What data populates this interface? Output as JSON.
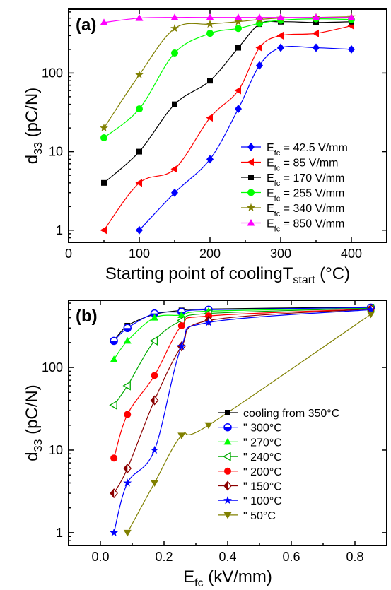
{
  "chart_data": [
    {
      "type": "line",
      "panel_label": "(a)",
      "xlabel_main": "Starting point of coolingT",
      "xlabel_sub": "start",
      "xlabel_tail": " (°C)",
      "ylabel_main": "d",
      "ylabel_sub": "33",
      "ylabel_tail": " (pC/N)",
      "xlim": [
        0,
        450
      ],
      "ylim": [
        0.7,
        650
      ],
      "yscale": "log",
      "xticks": [
        0,
        100,
        200,
        300,
        400
      ],
      "xtick_labels": [
        "0",
        "100",
        "200",
        "300",
        "400"
      ],
      "yticks": [
        1,
        10,
        100
      ],
      "ytick_labels": [
        "1",
        "10",
        "100"
      ],
      "legend_placement": "center-right",
      "series": [
        {
          "name_main": "E",
          "name_sub": "fc",
          "name_tail": " = 42.5 V/mm",
          "color": "#0000ff",
          "marker": "diamond",
          "x": [
            100,
            150,
            200,
            240,
            270,
            300,
            350,
            400
          ],
          "y": [
            1,
            3,
            8,
            35,
            125,
            210,
            210,
            200
          ]
        },
        {
          "name_main": "E",
          "name_sub": "fc",
          "name_tail": " = 85 V/mm",
          "color": "#ff0000",
          "marker": "triangle-left",
          "x": [
            50,
            100,
            150,
            200,
            240,
            270,
            300,
            350,
            400
          ],
          "y": [
            1,
            4,
            6,
            27,
            60,
            210,
            300,
            320,
            400
          ]
        },
        {
          "name_main": "E",
          "name_sub": "fc",
          "name_tail": " = 170 V/mm",
          "color": "#000000",
          "marker": "square",
          "x": [
            50,
            100,
            150,
            200,
            240,
            270,
            300,
            350,
            400
          ],
          "y": [
            4,
            10,
            40,
            80,
            210,
            420,
            450,
            440,
            450
          ]
        },
        {
          "name_main": "E",
          "name_sub": "fc",
          "name_tail": " = 255 V/mm",
          "color": "#00ff00",
          "marker": "circle",
          "x": [
            50,
            100,
            150,
            200,
            240,
            270,
            300,
            350,
            400
          ],
          "y": [
            15,
            35,
            180,
            320,
            370,
            430,
            470,
            490,
            480
          ]
        },
        {
          "name_main": "E",
          "name_sub": "fc",
          "name_tail": " = 340 V/mm",
          "color": "#808000",
          "marker": "star",
          "x": [
            50,
            100,
            150,
            200,
            240,
            270,
            300,
            350,
            400
          ],
          "y": [
            20,
            95,
            370,
            420,
            450,
            480,
            500,
            510,
            520
          ]
        },
        {
          "name_main": "E",
          "name_sub": "fc",
          "name_tail": " = 850 V/mm",
          "color": "#ff00ff",
          "marker": "triangle-up",
          "x": [
            50,
            100,
            150,
            200,
            240,
            270,
            300,
            350,
            400
          ],
          "y": [
            440,
            500,
            510,
            510,
            510,
            510,
            510,
            510,
            510
          ]
        }
      ]
    },
    {
      "type": "line",
      "panel_label": "(b)",
      "xlabel_main": "E",
      "xlabel_sub": "fc",
      "xlabel_tail": " (kV/mm)",
      "ylabel_main": "d",
      "ylabel_sub": "33",
      "ylabel_tail": " (pC/N)",
      "xlim": [
        -0.1,
        0.9
      ],
      "ylim": [
        0.7,
        650
      ],
      "yscale": "log",
      "xticks": [
        0.0,
        0.2,
        0.4,
        0.6,
        0.8
      ],
      "xtick_labels": [
        "0.0",
        "0.2",
        "0.4",
        "0.6",
        "0.8"
      ],
      "yticks": [
        1,
        10,
        100
      ],
      "ytick_labels": [
        "1",
        "10",
        "100"
      ],
      "legend_placement": "center-right",
      "series": [
        {
          "name_main": "cooling from 350°C",
          "name_sub": "",
          "name_tail": "",
          "color": "#000000",
          "marker": "square",
          "x": [
            0.0425,
            0.085,
            0.17,
            0.255,
            0.34,
            0.85
          ],
          "y": [
            210,
            320,
            440,
            490,
            510,
            540
          ]
        },
        {
          "name_main": "\"      300°C",
          "name_sub": "",
          "name_tail": "",
          "color": "#0000ff",
          "marker": "circle-half",
          "x": [
            0.0425,
            0.085,
            0.17,
            0.255,
            0.34,
            0.85
          ],
          "y": [
            210,
            300,
            450,
            470,
            500,
            530
          ]
        },
        {
          "name_main": "\"      270°C",
          "name_sub": "",
          "name_tail": "",
          "color": "#00ff00",
          "marker": "triangle-up",
          "x": [
            0.0425,
            0.085,
            0.17,
            0.255,
            0.34,
            0.85
          ],
          "y": [
            125,
            210,
            400,
            430,
            480,
            520
          ]
        },
        {
          "name_main": "\"      240°C",
          "name_sub": "",
          "name_tail": "",
          "color": "#00aa00",
          "marker": "triangle-left-open",
          "x": [
            0.0425,
            0.085,
            0.17,
            0.255,
            0.34,
            0.85
          ],
          "y": [
            35,
            60,
            210,
            370,
            450,
            520
          ]
        },
        {
          "name_main": "\"      200°C",
          "name_sub": "",
          "name_tail": "",
          "color": "#ff0000",
          "marker": "circle",
          "x": [
            0.0425,
            0.085,
            0.17,
            0.255,
            0.34,
            0.85
          ],
          "y": [
            8,
            27,
            80,
            320,
            420,
            510
          ]
        },
        {
          "name_main": "\"      150°C",
          "name_sub": "",
          "name_tail": "",
          "color": "#8b0000",
          "marker": "diamond-half",
          "x": [
            0.0425,
            0.085,
            0.17,
            0.255,
            0.34,
            0.85
          ],
          "y": [
            3,
            6,
            40,
            180,
            370,
            510
          ]
        },
        {
          "name_main": "\"      100°C",
          "name_sub": "",
          "name_tail": "",
          "color": "#0000ff",
          "marker": "star",
          "x": [
            0.0425,
            0.085,
            0.17,
            0.255,
            0.34,
            0.85
          ],
          "y": [
            1,
            4,
            10,
            180,
            350,
            500
          ]
        },
        {
          "name_main": "\"      50°C",
          "name_sub": "",
          "name_tail": "",
          "color": "#808000",
          "marker": "triangle-down",
          "x": [
            0.085,
            0.17,
            0.255,
            0.34,
            0.85
          ],
          "y": [
            1,
            4,
            15,
            20,
            440
          ]
        }
      ]
    }
  ]
}
